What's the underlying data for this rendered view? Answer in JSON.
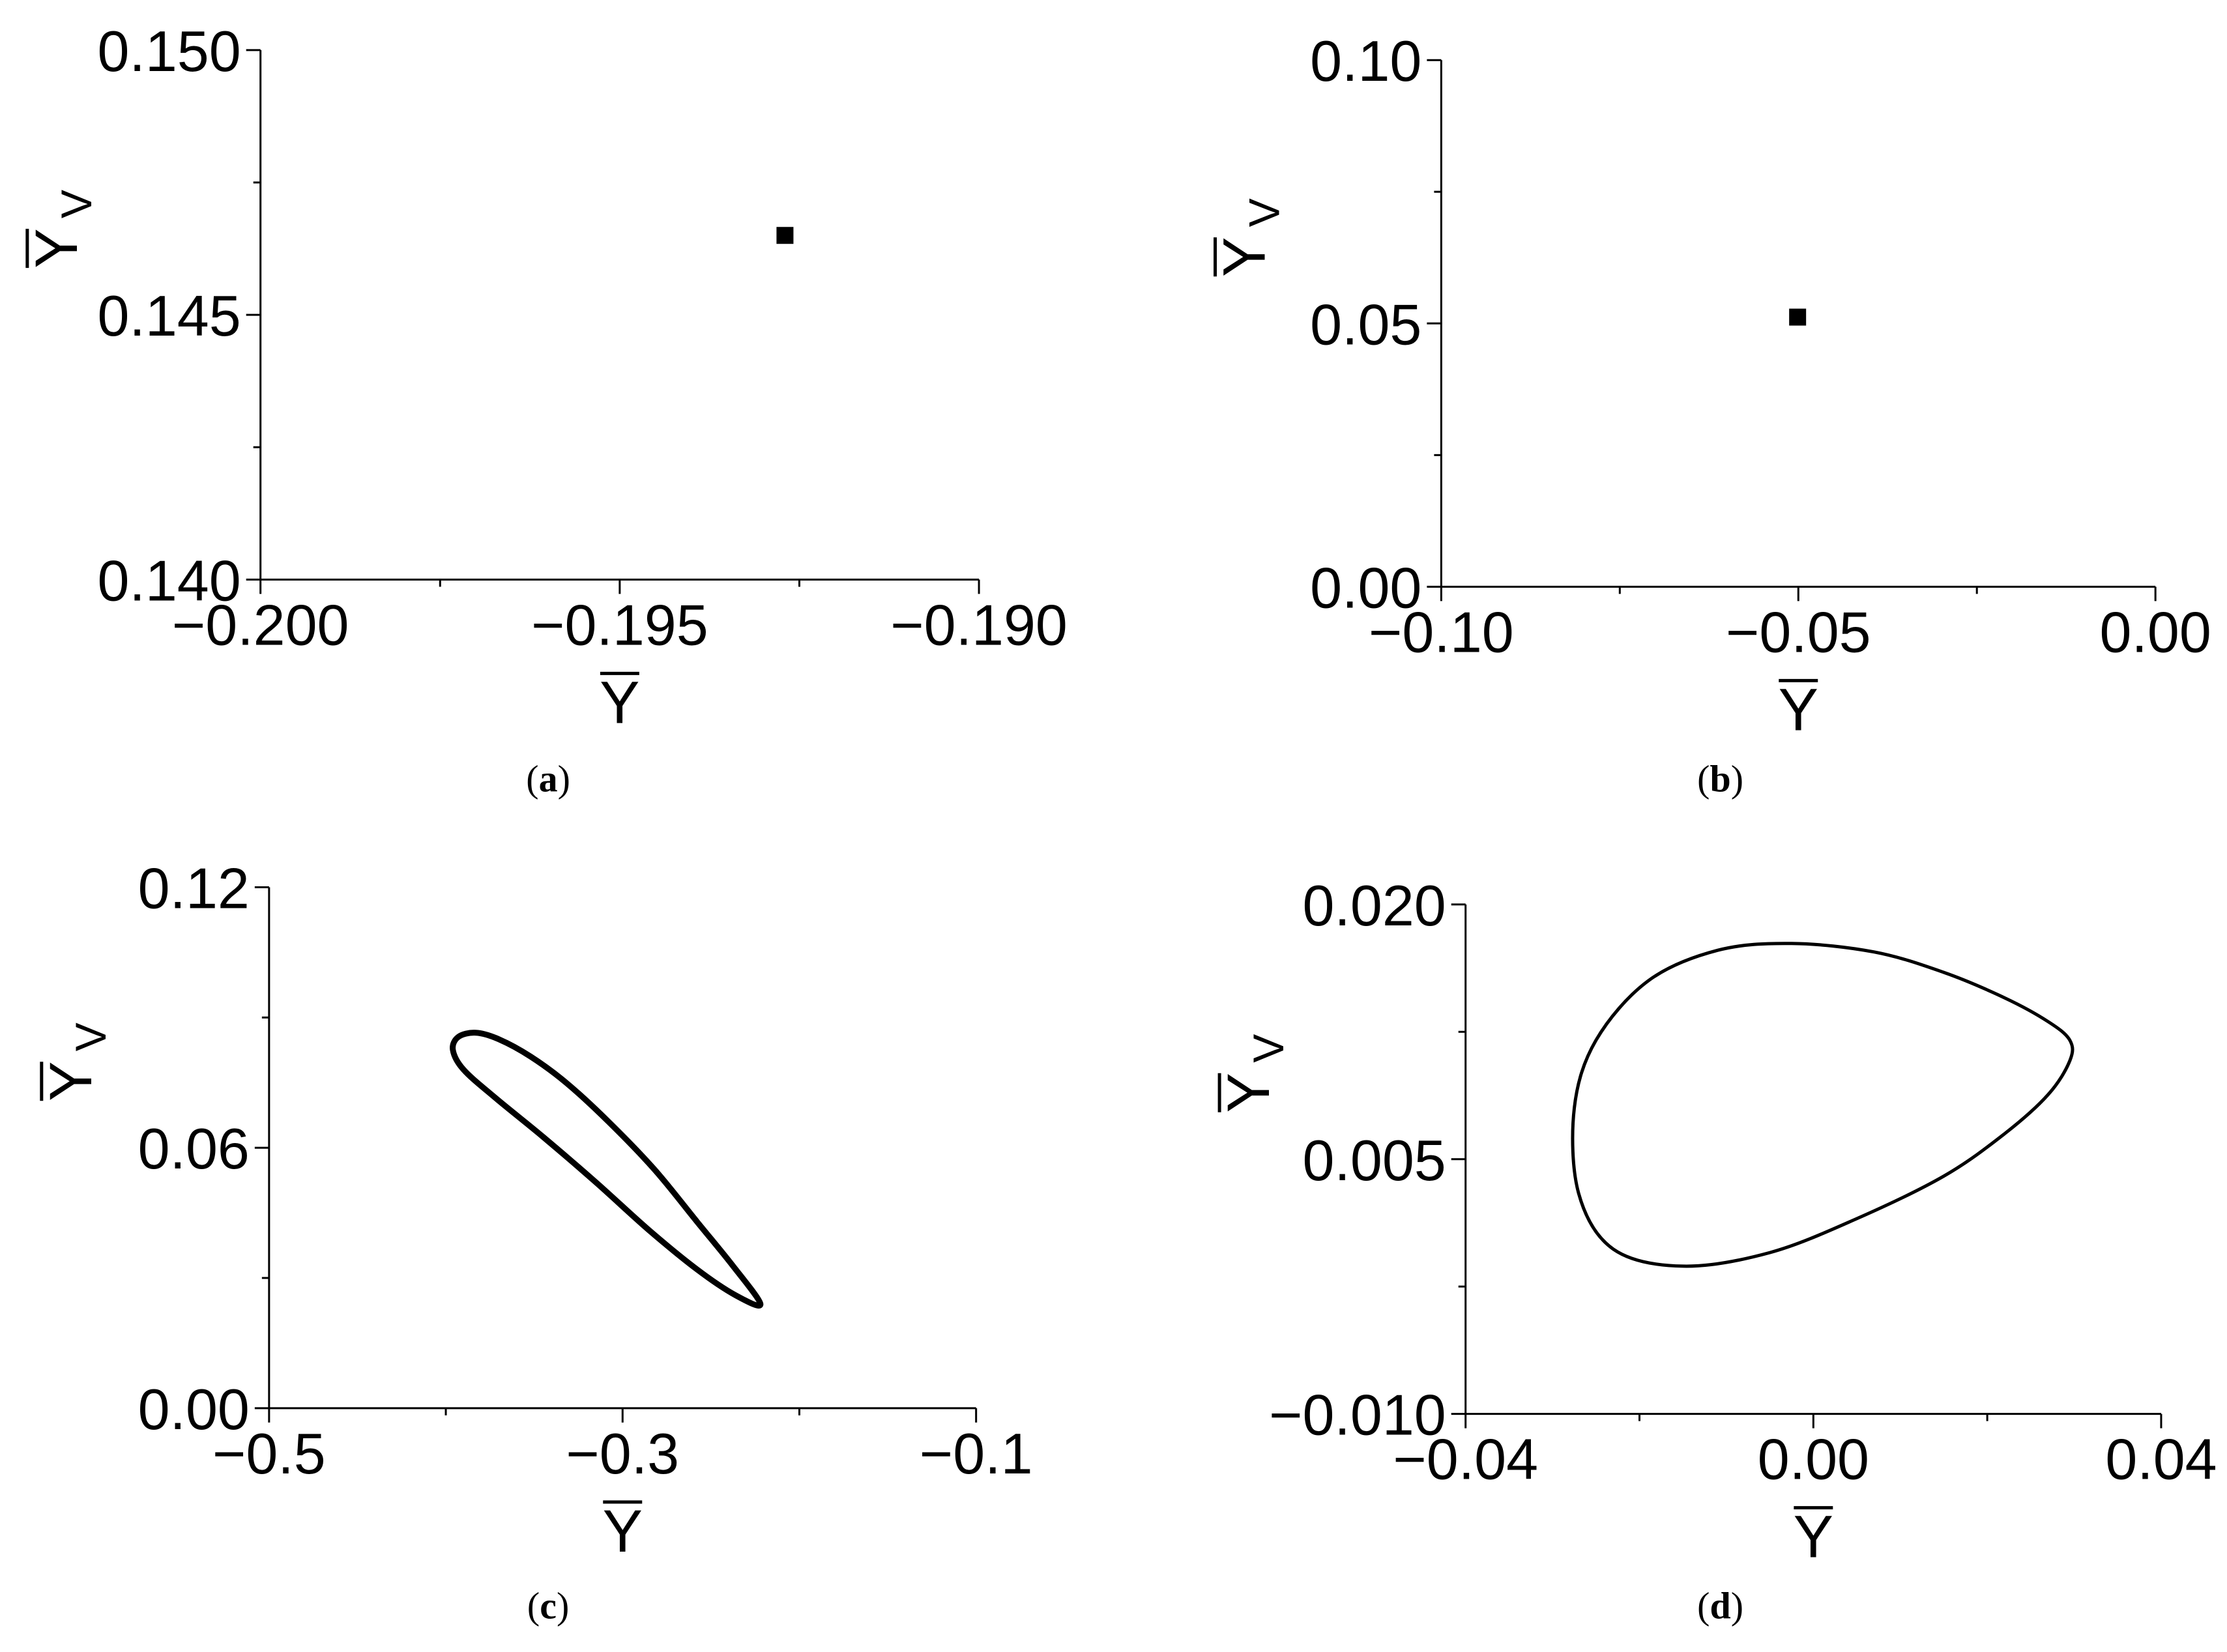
{
  "chart_data": [
    {
      "panel": "(a)",
      "panel_letter": "a",
      "type": "scatter",
      "xlabel": "Y",
      "ylabel": "Y",
      "ylabel_subscript": "V",
      "xlim": [
        -0.2,
        -0.19
      ],
      "ylim": [
        0.14,
        0.15
      ],
      "xticks": [
        -0.2,
        -0.195,
        -0.19
      ],
      "xtick_labels": [
        "−0.200",
        "−0.195",
        "−0.190"
      ],
      "yticks": [
        0.14,
        0.145,
        0.15
      ],
      "ytick_labels": [
        "0.140",
        "0.145",
        "0.150"
      ],
      "points": [
        {
          "x": -0.1927,
          "y": 0.1465
        }
      ],
      "color": "#000000"
    },
    {
      "panel": "(b)",
      "panel_letter": "b",
      "type": "scatter",
      "xlabel": "Y",
      "ylabel": "Y",
      "ylabel_subscript": "V",
      "xlim": [
        -0.1,
        0.0
      ],
      "ylim": [
        0.0,
        0.1
      ],
      "xticks": [
        -0.1,
        -0.05,
        0.0
      ],
      "xtick_labels": [
        "−0.10",
        "−0.05",
        "0.00"
      ],
      "yticks": [
        0.0,
        0.05,
        0.1
      ],
      "ytick_labels": [
        "0.00",
        "0.05",
        "0.10"
      ],
      "points": [
        {
          "x": -0.0501,
          "y": 0.0512
        }
      ],
      "color": "#000000"
    },
    {
      "panel": "(c)",
      "panel_letter": "c",
      "type": "line",
      "xlabel": "Y",
      "ylabel": "Y",
      "ylabel_subscript": "V",
      "xlim": [
        -0.5,
        -0.1
      ],
      "ylim": [
        0.0,
        0.12
      ],
      "xticks": [
        -0.5,
        -0.3,
        -0.1
      ],
      "xtick_labels": [
        "−0.5",
        "−0.3",
        "−0.1"
      ],
      "yticks": [
        0.0,
        0.06,
        0.12
      ],
      "ytick_labels": [
        "0.00",
        "0.06",
        "0.12"
      ],
      "closed": true,
      "points": [
        {
          "x": -0.222,
          "y": 0.024
        },
        {
          "x": -0.238,
          "y": 0.033
        },
        {
          "x": -0.258,
          "y": 0.043
        },
        {
          "x": -0.282,
          "y": 0.055
        },
        {
          "x": -0.308,
          "y": 0.066
        },
        {
          "x": -0.332,
          "y": 0.075
        },
        {
          "x": -0.352,
          "y": 0.081
        },
        {
          "x": -0.37,
          "y": 0.085
        },
        {
          "x": -0.383,
          "y": 0.0865
        },
        {
          "x": -0.393,
          "y": 0.0855
        },
        {
          "x": -0.396,
          "y": 0.0825
        },
        {
          "x": -0.39,
          "y": 0.078
        },
        {
          "x": -0.372,
          "y": 0.0715
        },
        {
          "x": -0.345,
          "y": 0.0625
        },
        {
          "x": -0.315,
          "y": 0.052
        },
        {
          "x": -0.285,
          "y": 0.041
        },
        {
          "x": -0.258,
          "y": 0.032
        },
        {
          "x": -0.236,
          "y": 0.026
        },
        {
          "x": -0.222,
          "y": 0.024
        }
      ],
      "color": "#000000"
    },
    {
      "panel": "(d)",
      "panel_letter": "d",
      "type": "line",
      "xlabel": "Y",
      "ylabel": "Y",
      "ylabel_subscript": "V",
      "xlim": [
        -0.04,
        0.04
      ],
      "ylim": [
        -0.01,
        0.02
      ],
      "xticks": [
        -0.04,
        0.0,
        0.04
      ],
      "xtick_labels": [
        "−0.04",
        "0.00",
        "0.04"
      ],
      "yticks": [
        -0.01,
        0.005,
        0.02
      ],
      "ytick_labels": [
        "−0.010",
        "0.005",
        "0.020"
      ],
      "closed": true,
      "points": [
        {
          "x": -0.0025,
          "y": 0.0177
        },
        {
          "x": 0.007,
          "y": 0.0172
        },
        {
          "x": 0.015,
          "y": 0.016
        },
        {
          "x": 0.022,
          "y": 0.0145
        },
        {
          "x": 0.027,
          "y": 0.0131
        },
        {
          "x": 0.0295,
          "y": 0.012
        },
        {
          "x": 0.0295,
          "y": 0.0108
        },
        {
          "x": 0.027,
          "y": 0.0088
        },
        {
          "x": 0.022,
          "y": 0.0065
        },
        {
          "x": 0.015,
          "y": 0.004
        },
        {
          "x": 0.005,
          "y": 0.0015
        },
        {
          "x": -0.005,
          "y": -0.0005
        },
        {
          "x": -0.015,
          "y": -0.0013
        },
        {
          "x": -0.023,
          "y": -0.0003
        },
        {
          "x": -0.027,
          "y": 0.003
        },
        {
          "x": -0.0275,
          "y": 0.008
        },
        {
          "x": -0.025,
          "y": 0.012
        },
        {
          "x": -0.019,
          "y": 0.0155
        },
        {
          "x": -0.011,
          "y": 0.0173
        },
        {
          "x": -0.0025,
          "y": 0.0177
        }
      ],
      "color": "#000000"
    }
  ]
}
